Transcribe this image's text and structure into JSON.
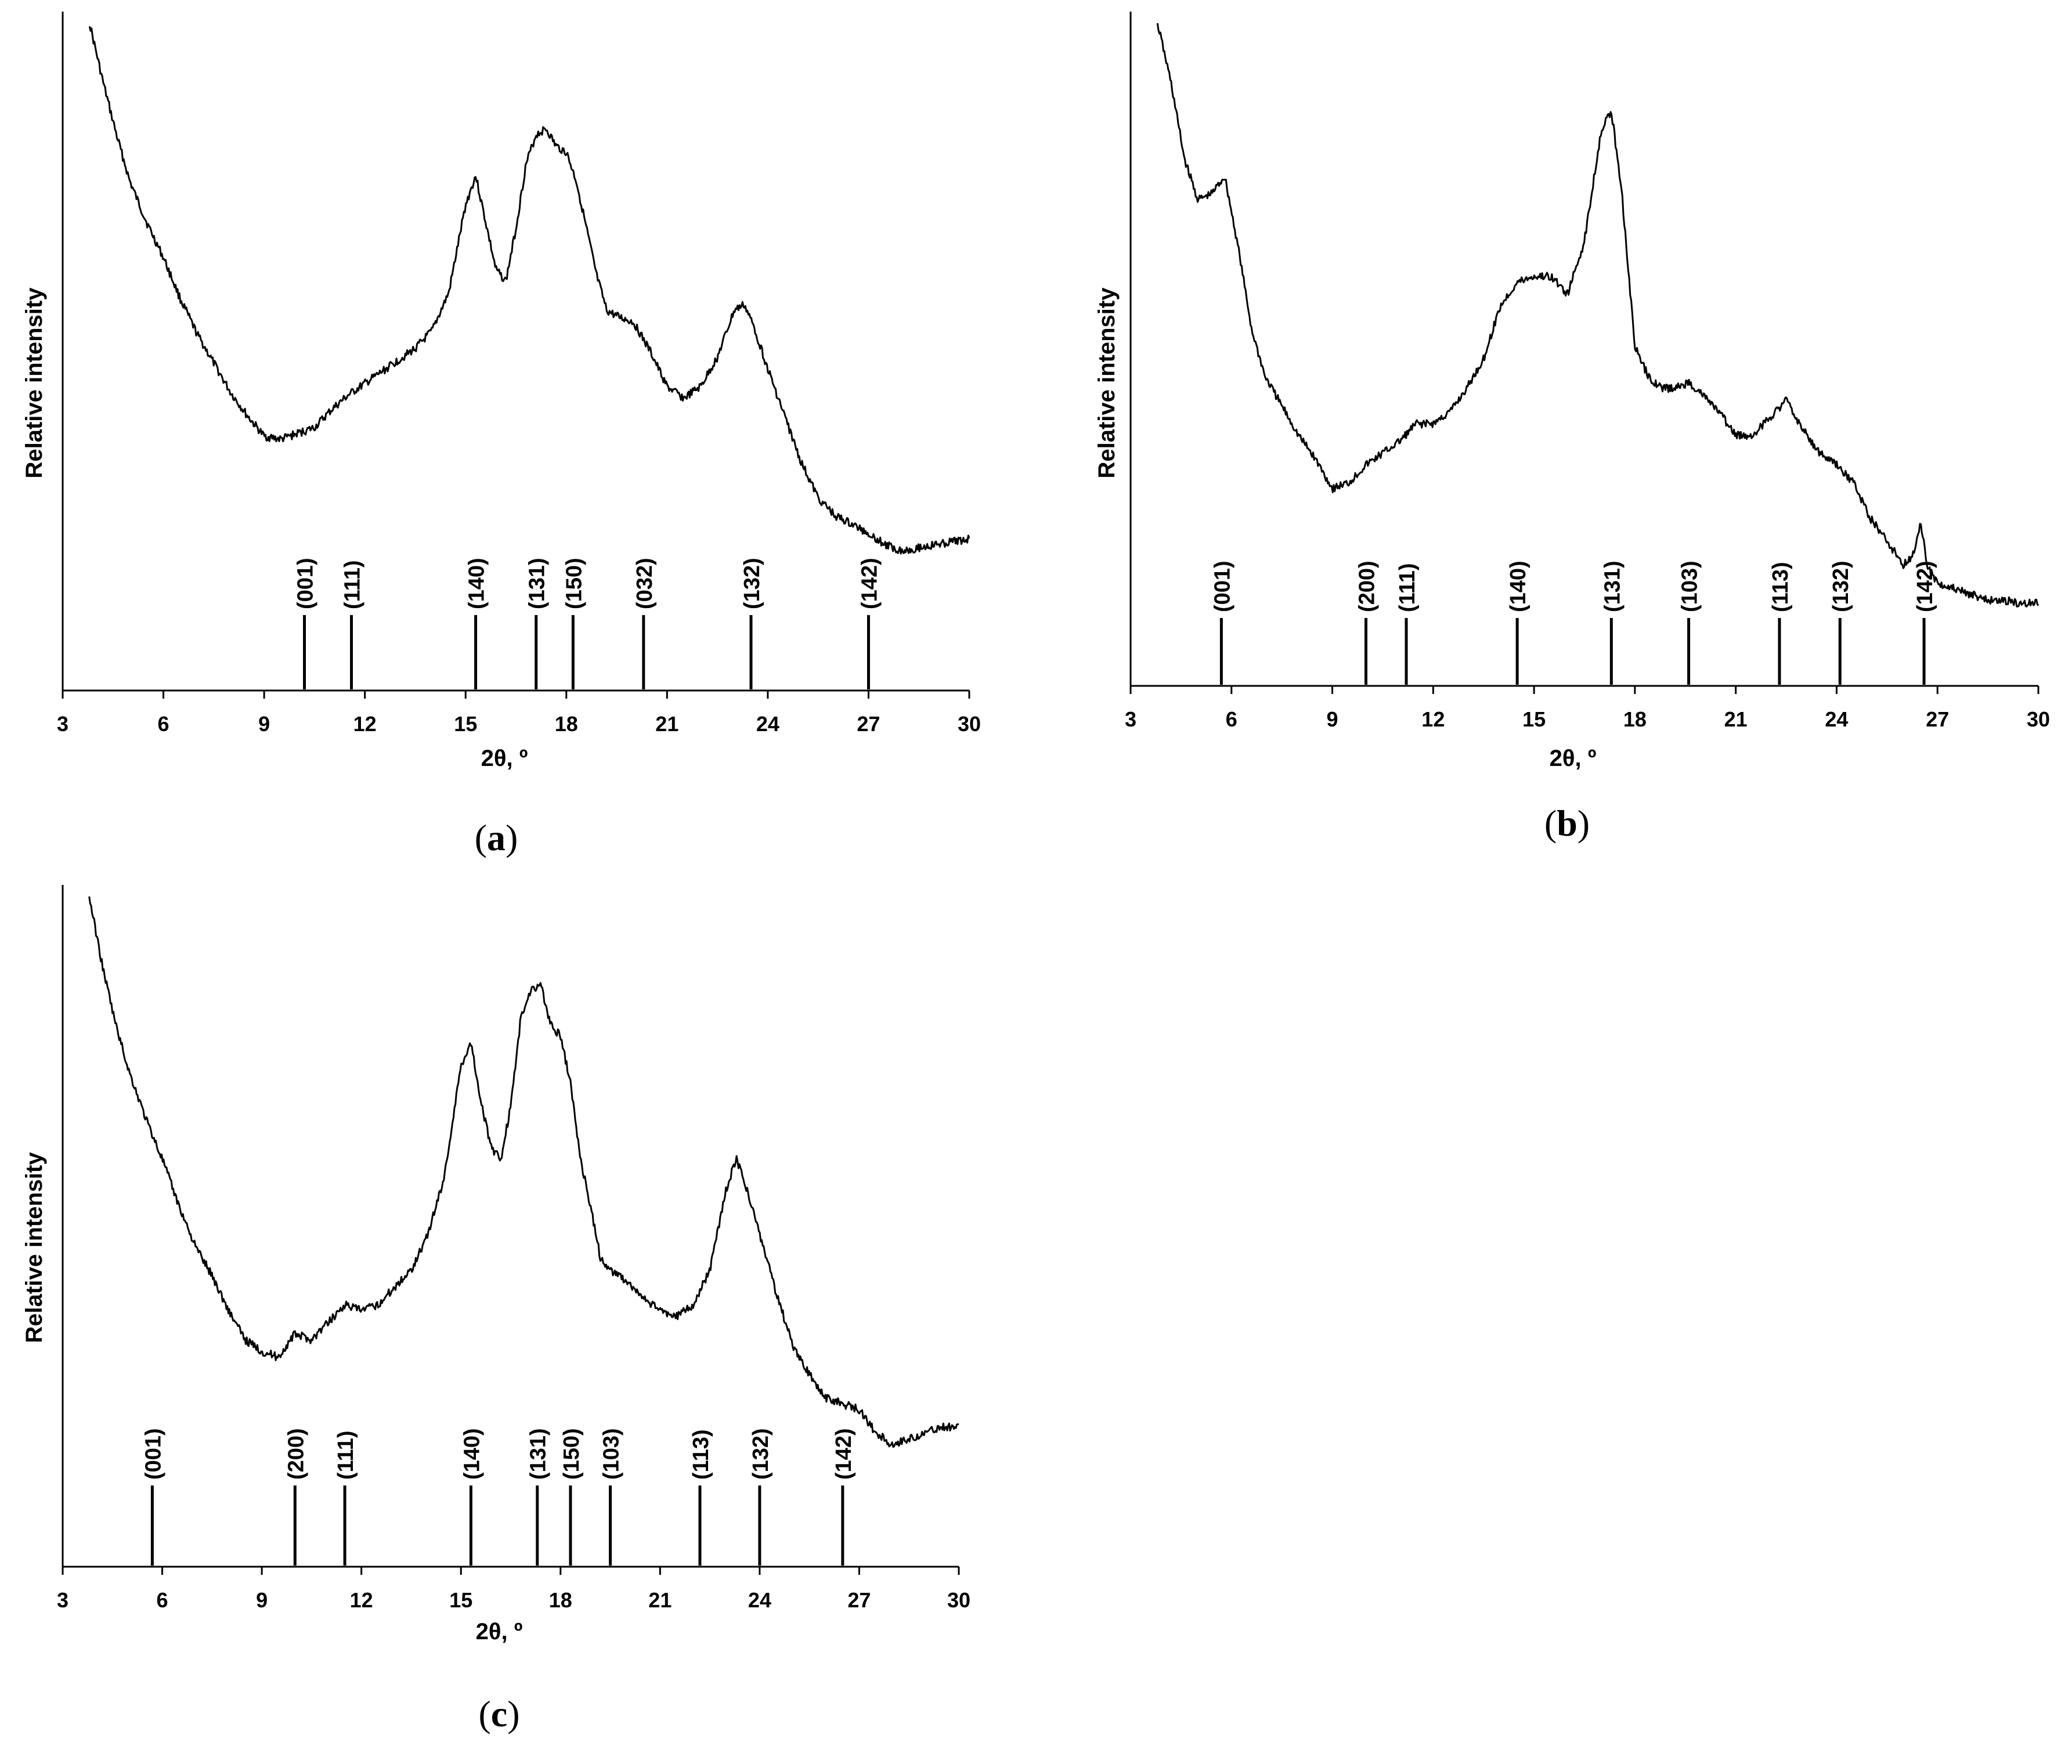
{
  "chart_data": [
    {
      "type": "line",
      "panel_label": "a",
      "xlabel": "2θ, º",
      "ylabel": "Relative intensity",
      "xlim": [
        3,
        30
      ],
      "xticks": [
        3,
        6,
        9,
        12,
        15,
        18,
        21,
        24,
        27,
        30
      ],
      "ylim": [
        0,
        100
      ],
      "grid": false,
      "series": [
        {
          "x": [
            3.8,
            4.2,
            4.6,
            5.0,
            5.5,
            6.0,
            6.5,
            7.0,
            7.5,
            8.0,
            8.5,
            9.0,
            9.5,
            10.0,
            10.5,
            11.0,
            11.5,
            12.0,
            12.5,
            13.0,
            13.5,
            14.0,
            14.5,
            15.0,
            15.3,
            15.6,
            15.9,
            16.2,
            16.5,
            16.8,
            17.1,
            17.4,
            17.7,
            18.0,
            18.3,
            18.6,
            18.9,
            19.2,
            19.5,
            20.0,
            20.5,
            21.0,
            21.5,
            22.0,
            22.5,
            23.0,
            23.3,
            23.6,
            24.0,
            24.5,
            25.0,
            25.5,
            26.0,
            26.5,
            27.0,
            27.5,
            28.0,
            28.5,
            29.0,
            29.5,
            30.0
          ],
          "y": [
            100,
            90,
            81,
            73,
            66,
            60,
            53,
            47,
            42,
            37,
            33,
            29.5,
            29,
            30,
            31,
            34,
            36.5,
            38.5,
            40.5,
            42.5,
            44.5,
            47.5,
            54,
            69,
            74,
            66,
            58,
            56,
            65,
            76,
            81,
            82,
            79,
            78,
            73,
            65,
            57,
            51,
            50,
            49,
            44,
            38,
            36,
            38,
            43,
            51,
            52,
            48,
            41,
            33,
            25,
            19,
            16,
            14.5,
            13,
            11,
            10,
            10.5,
            11,
            11.5,
            12
          ]
        }
      ],
      "reference_lines": [
        {
          "label": "(001)",
          "x": 10.2
        },
        {
          "label": "(111)",
          "x": 11.6
        },
        {
          "label": "(140)",
          "x": 15.3
        },
        {
          "label": "(131)",
          "x": 17.1
        },
        {
          "label": "(150)",
          "x": 18.2
        },
        {
          "label": "(032)",
          "x": 20.3
        },
        {
          "label": "(132)",
          "x": 23.5
        },
        {
          "label": "(142)",
          "x": 27.0
        }
      ]
    },
    {
      "type": "line",
      "panel_label": "b",
      "xlabel": "2θ, º",
      "ylabel": "Relative intensity",
      "xlim": [
        3,
        30
      ],
      "xticks": [
        3,
        6,
        9,
        12,
        15,
        18,
        21,
        24,
        27,
        30
      ],
      "ylim": [
        0,
        100
      ],
      "grid": false,
      "series": [
        {
          "x": [
            3.8,
            4.2,
            4.6,
            5.0,
            5.4,
            5.8,
            6.2,
            6.6,
            7.0,
            7.5,
            8.0,
            8.5,
            9.0,
            9.5,
            10.0,
            10.5,
            11.0,
            11.5,
            12.0,
            12.5,
            13.0,
            13.5,
            14.0,
            14.5,
            15.0,
            15.5,
            16.0,
            16.5,
            17.0,
            17.3,
            17.6,
            18.0,
            18.4,
            18.8,
            19.2,
            19.6,
            20.0,
            20.5,
            21.0,
            21.5,
            22.0,
            22.5,
            23.0,
            23.5,
            24.0,
            24.5,
            25.0,
            25.5,
            26.0,
            26.3,
            26.5,
            26.7,
            27.0,
            27.5,
            28.0,
            28.5,
            29.0,
            29.5,
            30.0
          ],
          "y": [
            100,
            90,
            77,
            70,
            71,
            74,
            62,
            48,
            40,
            35,
            30,
            26,
            21,
            22,
            25,
            27,
            29,
            32,
            32,
            34,
            38,
            43,
            52,
            56,
            57,
            57,
            54,
            63,
            82,
            85,
            72,
            45,
            40,
            38,
            38,
            39,
            37,
            34,
            30,
            30,
            33,
            36,
            31,
            27,
            25,
            22,
            16,
            12,
            8,
            10,
            15,
            8,
            5,
            4,
            3,
            2,
            2,
            1.5,
            1.5
          ]
        }
      ],
      "reference_lines": [
        {
          "label": "(001)",
          "x": 5.7
        },
        {
          "label": "(200)",
          "x": 10.0
        },
        {
          "label": "(111)",
          "x": 11.2
        },
        {
          "label": "(140)",
          "x": 14.5
        },
        {
          "label": "(131)",
          "x": 17.3
        },
        {
          "label": "(103)",
          "x": 19.6
        },
        {
          "label": "(113)",
          "x": 22.3
        },
        {
          "label": "(132)",
          "x": 24.1
        },
        {
          "label": "(142)",
          "x": 26.6
        }
      ]
    },
    {
      "type": "line",
      "panel_label": "c",
      "xlabel": "2θ, º",
      "ylabel": "Relative intensity",
      "xlim": [
        3,
        30
      ],
      "xticks": [
        3,
        6,
        9,
        12,
        15,
        18,
        21,
        24,
        27,
        30
      ],
      "ylim": [
        0,
        100
      ],
      "grid": false,
      "series": [
        {
          "x": [
            3.8,
            4.2,
            4.6,
            5.0,
            5.5,
            6.0,
            6.5,
            7.0,
            7.5,
            8.0,
            8.5,
            9.0,
            9.5,
            10.0,
            10.5,
            11.0,
            11.5,
            12.0,
            12.5,
            13.0,
            13.5,
            14.0,
            14.5,
            15.0,
            15.3,
            15.6,
            15.9,
            16.2,
            16.5,
            16.8,
            17.1,
            17.4,
            17.7,
            18.0,
            18.3,
            18.6,
            18.9,
            19.2,
            19.5,
            20.0,
            20.5,
            21.0,
            21.5,
            22.0,
            22.5,
            23.0,
            23.3,
            23.6,
            24.0,
            24.5,
            25.0,
            25.5,
            26.0,
            26.5,
            27.0,
            27.5,
            28.0,
            28.5,
            29.0,
            29.5,
            30.0
          ],
          "y": [
            100,
            88,
            78,
            70,
            62,
            55,
            47,
            40,
            35,
            29,
            24,
            22,
            21,
            25,
            24,
            27,
            30,
            29,
            30,
            33,
            36,
            42,
            52,
            71,
            75,
            65,
            57,
            55,
            64,
            79,
            84,
            85,
            78,
            76,
            68,
            55,
            47,
            38,
            36,
            34,
            31,
            29,
            28,
            30,
            36,
            50,
            55,
            50,
            42,
            32,
            23,
            18,
            14,
            13,
            12,
            8,
            6,
            7,
            8,
            9,
            9
          ]
        }
      ],
      "reference_lines": [
        {
          "label": "(001)",
          "x": 5.7
        },
        {
          "label": "(200)",
          "x": 10.0
        },
        {
          "label": "(111)",
          "x": 11.5
        },
        {
          "label": "(140)",
          "x": 15.3
        },
        {
          "label": "(131)",
          "x": 17.3
        },
        {
          "label": "(150)",
          "x": 18.3
        },
        {
          "label": "(103)",
          "x": 19.5
        },
        {
          "label": "(113)",
          "x": 22.2
        },
        {
          "label": "(132)",
          "x": 24.0
        },
        {
          "label": "(142)",
          "x": 26.5
        }
      ]
    }
  ],
  "line_color": "#000000"
}
